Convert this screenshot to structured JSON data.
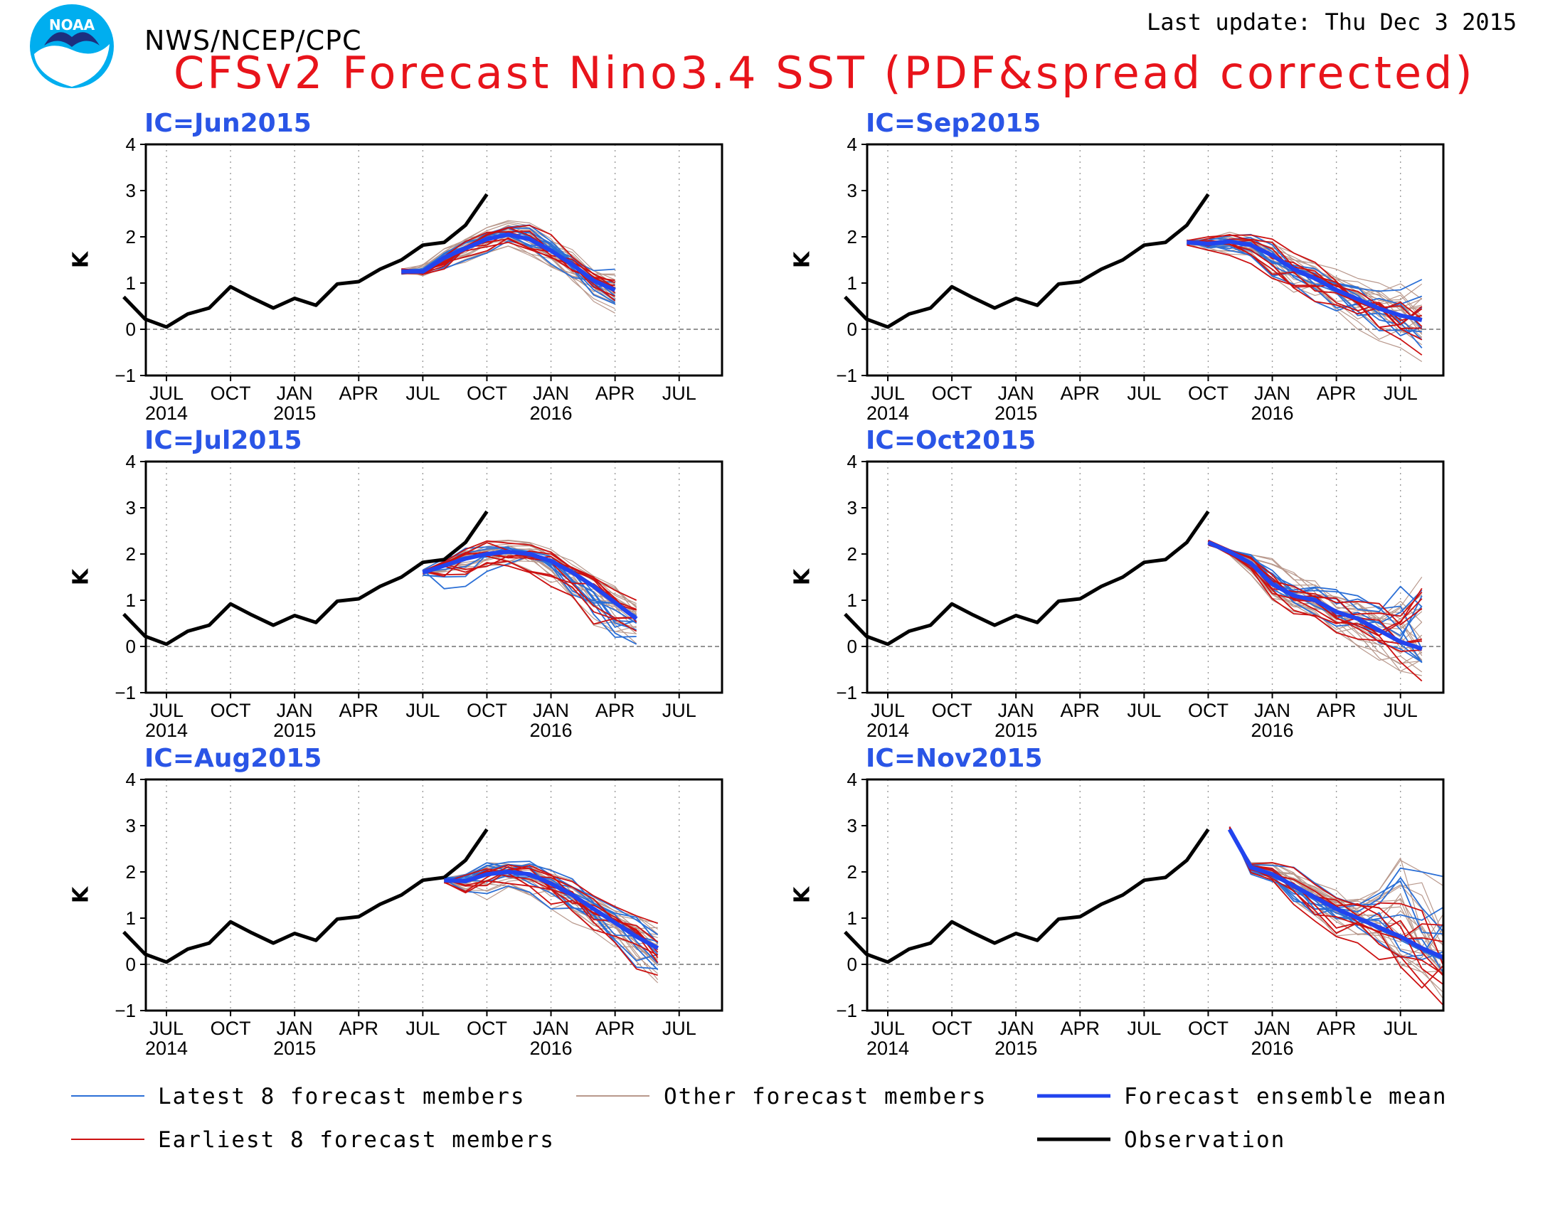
{
  "header": {
    "agency": "NWS/NCEP/CPC",
    "title": "CFSv2 Forecast Nino3.4 SST (PDF&spread corrected)",
    "last_update": "Last update: Thu Dec  3 2015"
  },
  "legend": {
    "latest": "Latest 8 forecast members",
    "earliest": "Earliest 8 forecast members",
    "other": "Other forecast members",
    "mean": "Forecast ensemble mean",
    "observation": "Observation"
  },
  "colors": {
    "latest": "#2b6fd6",
    "earliest": "#cc1111",
    "other": "#b8988c",
    "mean": "#2244ee",
    "observation": "#000000",
    "title": "#e8141b",
    "panel_title": "#2a55e6"
  },
  "chart_data": {
    "type": "line",
    "ylabel": "K",
    "ylim": [
      -1,
      4
    ],
    "yticks": [
      4,
      3,
      2,
      1,
      0,
      -1
    ],
    "x_month_ticks": [
      "JUL",
      "OCT",
      "JAN",
      "APR",
      "JUL",
      "OCT",
      "JAN",
      "APR",
      "JUL"
    ],
    "x_year_ticks": [
      "2014",
      "2015",
      "2016"
    ],
    "observation": {
      "months": [
        "May2014",
        "Jun2014",
        "Jul2014",
        "Aug2014",
        "Sep2014",
        "Oct2014",
        "Nov2014",
        "Dec2014",
        "Jan2015",
        "Feb2015",
        "Mar2015",
        "Apr2015",
        "May2015",
        "Jun2015",
        "Jul2015",
        "Aug2015",
        "Sep2015",
        "Oct2015",
        "Nov2015"
      ],
      "values": [
        0.7,
        0.22,
        0.05,
        0.33,
        0.46,
        0.92,
        0.68,
        0.46,
        0.67,
        0.52,
        0.98,
        1.03,
        1.3,
        1.5,
        1.82,
        1.88,
        2.25,
        2.92,
        null
      ]
    },
    "panels": [
      {
        "ic": "IC=Jun2015",
        "mean": {
          "start": "Jun2015",
          "values": [
            1.25,
            1.25,
            1.55,
            1.75,
            1.95,
            2.05,
            1.95,
            1.7,
            1.4,
            1.05,
            0.85
          ]
        },
        "spread_low": [
          1.15,
          1.1,
          1.2,
          1.45,
          1.65,
          1.8,
          1.6,
          1.35,
          1.0,
          0.6,
          0.35
        ],
        "spread_high": [
          1.3,
          1.45,
          1.75,
          2.0,
          2.2,
          2.35,
          2.3,
          2.05,
          1.75,
          1.35,
          1.3
        ]
      },
      {
        "ic": "IC=Sep2015",
        "mean": {
          "start": "Sep2015",
          "values": [
            1.88,
            1.85,
            1.9,
            1.82,
            1.6,
            1.3,
            1.1,
            0.85,
            0.65,
            0.45,
            0.3,
            0.2
          ]
        },
        "spread_low": [
          1.8,
          1.7,
          1.6,
          1.4,
          1.1,
          0.8,
          0.6,
          0.3,
          0.0,
          -0.25,
          -0.4,
          -0.7
        ],
        "spread_high": [
          1.9,
          2.0,
          2.1,
          2.05,
          1.95,
          1.65,
          1.45,
          1.3,
          1.1,
          1.0,
          1.0,
          1.25
        ]
      },
      {
        "ic": "IC=Jul2015",
        "mean": {
          "start": "Jul2015",
          "values": [
            1.6,
            1.75,
            1.9,
            2.0,
            2.05,
            2.0,
            1.85,
            1.6,
            1.3,
            0.95,
            0.6
          ]
        },
        "spread_low": [
          1.5,
          1.25,
          1.3,
          1.6,
          1.7,
          1.6,
          1.3,
          0.9,
          0.45,
          0.2,
          0.05
        ],
        "spread_high": [
          1.65,
          1.9,
          2.15,
          2.3,
          2.3,
          2.25,
          2.1,
          1.85,
          1.55,
          1.3,
          1.0
        ]
      },
      {
        "ic": "IC=Oct2015",
        "mean": {
          "start": "Oct2015",
          "values": [
            2.25,
            2.05,
            1.8,
            1.35,
            1.1,
            1.0,
            0.75,
            0.6,
            0.35,
            0.1,
            -0.05
          ]
        },
        "spread_low": [
          2.2,
          1.95,
          1.55,
          1.0,
          0.7,
          0.6,
          0.3,
          0.0,
          -0.3,
          -0.6,
          -0.95
        ],
        "spread_high": [
          2.3,
          2.15,
          2.05,
          1.9,
          1.6,
          1.55,
          1.3,
          1.15,
          1.0,
          1.3,
          2.05
        ]
      },
      {
        "ic": "IC=Aug2015",
        "mean": {
          "start": "Aug2015",
          "values": [
            1.82,
            1.8,
            1.95,
            2.0,
            1.95,
            1.75,
            1.5,
            1.2,
            0.9,
            0.6,
            0.35
          ]
        },
        "spread_low": [
          1.8,
          1.55,
          1.4,
          1.6,
          1.5,
          1.2,
          0.9,
          0.6,
          0.3,
          -0.1,
          -0.4
        ],
        "spread_high": [
          1.85,
          1.95,
          2.2,
          2.3,
          2.3,
          2.1,
          1.85,
          1.5,
          1.25,
          1.05,
          0.9
        ]
      },
      {
        "ic": "IC=Nov2015",
        "mean": {
          "start": "Nov2015",
          "values": [
            2.92,
            2.1,
            1.95,
            1.7,
            1.45,
            1.2,
            1.0,
            0.8,
            0.6,
            0.35,
            0.15
          ]
        },
        "spread_low": [
          2.9,
          1.95,
          1.75,
          1.2,
          0.9,
          0.6,
          0.4,
          0.1,
          -0.5,
          -0.75,
          -0.95
        ],
        "spread_high": [
          2.95,
          2.2,
          2.2,
          2.1,
          1.8,
          1.6,
          1.5,
          1.7,
          2.3,
          2.0,
          1.9
        ]
      }
    ]
  }
}
